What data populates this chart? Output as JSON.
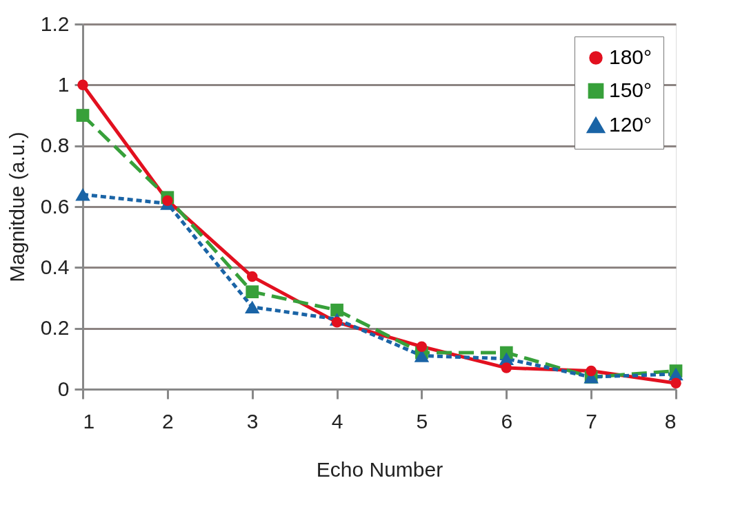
{
  "chart_data": {
    "type": "line",
    "xlabel": "Echo Number",
    "ylabel": "Magnitdue (a.u.)",
    "categories": [
      "1",
      "2",
      "3",
      "4",
      "5",
      "6",
      "7",
      "8"
    ],
    "series": [
      {
        "name": "180°",
        "color": "#e2101f",
        "marker": "circle",
        "line_style": "solid",
        "values": [
          1.0,
          0.62,
          0.37,
          0.22,
          0.14,
          0.07,
          0.06,
          0.02
        ]
      },
      {
        "name": "150°",
        "color": "#37a03a",
        "marker": "square",
        "line_style": "dashed",
        "values": [
          0.9,
          0.63,
          0.32,
          0.26,
          0.12,
          0.12,
          0.04,
          0.06
        ]
      },
      {
        "name": "120°",
        "color": "#1a64a6",
        "marker": "triangle",
        "line_style": "dotted",
        "values": [
          0.64,
          0.61,
          0.27,
          0.23,
          0.11,
          0.1,
          0.04,
          0.05
        ]
      }
    ],
    "ylim": [
      0,
      1.2
    ],
    "yticks": [
      0,
      0.2,
      0.4,
      0.6,
      0.8,
      1,
      1.2
    ],
    "grid": "y",
    "legend": "top right"
  }
}
